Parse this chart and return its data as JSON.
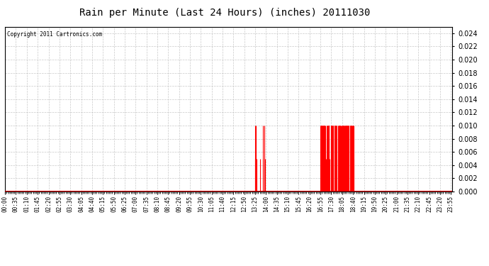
{
  "title": "Rain per Minute (Last 24 Hours) (inches) 20111030",
  "copyright_text": "Copyright 2011 Cartronics.com",
  "bar_color": "#ff0000",
  "background_color": "#ffffff",
  "plot_bg_color": "#ffffff",
  "grid_color": "#bbbbbb",
  "baseline_color": "#ff0000",
  "ylim": [
    0.0,
    0.025
  ],
  "yticks": [
    0.0,
    0.002,
    0.004,
    0.006,
    0.008,
    0.01,
    0.012,
    0.014,
    0.016,
    0.018,
    0.02,
    0.022,
    0.024
  ],
  "total_minutes": 1440,
  "xtick_step": 35,
  "rain_events": [
    {
      "minute": 805,
      "value": 0.005
    },
    {
      "minute": 806,
      "value": 0.01
    },
    {
      "minute": 807,
      "value": 0.005
    },
    {
      "minute": 808,
      "value": 0.01
    },
    {
      "minute": 809,
      "value": 0.005
    },
    {
      "minute": 820,
      "value": 0.005
    },
    {
      "minute": 830,
      "value": 0.01
    },
    {
      "minute": 831,
      "value": 0.005
    },
    {
      "minute": 835,
      "value": 0.01
    },
    {
      "minute": 836,
      "value": 0.005
    },
    {
      "minute": 1015,
      "value": 0.01
    },
    {
      "minute": 1016,
      "value": 0.01
    },
    {
      "minute": 1017,
      "value": 0.01
    },
    {
      "minute": 1018,
      "value": 0.01
    },
    {
      "minute": 1019,
      "value": 0.01
    },
    {
      "minute": 1020,
      "value": 0.01
    },
    {
      "minute": 1021,
      "value": 0.01
    },
    {
      "minute": 1022,
      "value": 0.01
    },
    {
      "minute": 1023,
      "value": 0.01
    },
    {
      "minute": 1024,
      "value": 0.01
    },
    {
      "minute": 1025,
      "value": 0.01
    },
    {
      "minute": 1026,
      "value": 0.01
    },
    {
      "minute": 1027,
      "value": 0.01
    },
    {
      "minute": 1028,
      "value": 0.01
    },
    {
      "minute": 1029,
      "value": 0.01
    },
    {
      "minute": 1030,
      "value": 0.01
    },
    {
      "minute": 1031,
      "value": 0.005
    },
    {
      "minute": 1032,
      "value": 0.005
    },
    {
      "minute": 1036,
      "value": 0.01
    },
    {
      "minute": 1037,
      "value": 0.01
    },
    {
      "minute": 1038,
      "value": 0.01
    },
    {
      "minute": 1039,
      "value": 0.01
    },
    {
      "minute": 1040,
      "value": 0.01
    },
    {
      "minute": 1041,
      "value": 0.01
    },
    {
      "minute": 1042,
      "value": 0.01
    },
    {
      "minute": 1043,
      "value": 0.01
    },
    {
      "minute": 1044,
      "value": 0.005
    },
    {
      "minute": 1048,
      "value": 0.01
    },
    {
      "minute": 1049,
      "value": 0.01
    },
    {
      "minute": 1050,
      "value": 0.01
    },
    {
      "minute": 1051,
      "value": 0.01
    },
    {
      "minute": 1052,
      "value": 0.01
    },
    {
      "minute": 1053,
      "value": 0.01
    },
    {
      "minute": 1054,
      "value": 0.01
    },
    {
      "minute": 1055,
      "value": 0.01
    },
    {
      "minute": 1056,
      "value": 0.01
    },
    {
      "minute": 1060,
      "value": 0.01
    },
    {
      "minute": 1061,
      "value": 0.01
    },
    {
      "minute": 1062,
      "value": 0.01
    },
    {
      "minute": 1063,
      "value": 0.01
    },
    {
      "minute": 1064,
      "value": 0.01
    },
    {
      "minute": 1065,
      "value": 0.01
    },
    {
      "minute": 1066,
      "value": 0.01
    },
    {
      "minute": 1067,
      "value": 0.01
    },
    {
      "minute": 1068,
      "value": 0.005
    },
    {
      "minute": 1072,
      "value": 0.01
    },
    {
      "minute": 1073,
      "value": 0.01
    },
    {
      "minute": 1074,
      "value": 0.01
    },
    {
      "minute": 1075,
      "value": 0.01
    },
    {
      "minute": 1076,
      "value": 0.01
    },
    {
      "minute": 1077,
      "value": 0.01
    },
    {
      "minute": 1078,
      "value": 0.01
    },
    {
      "minute": 1079,
      "value": 0.01
    },
    {
      "minute": 1080,
      "value": 0.01
    },
    {
      "minute": 1084,
      "value": 0.01
    },
    {
      "minute": 1085,
      "value": 0.01
    },
    {
      "minute": 1086,
      "value": 0.01
    },
    {
      "minute": 1087,
      "value": 0.01
    },
    {
      "minute": 1088,
      "value": 0.01
    },
    {
      "minute": 1089,
      "value": 0.01
    },
    {
      "minute": 1090,
      "value": 0.01
    },
    {
      "minute": 1091,
      "value": 0.01
    },
    {
      "minute": 1092,
      "value": 0.005
    },
    {
      "minute": 1093,
      "value": 0.01
    },
    {
      "minute": 1094,
      "value": 0.01
    },
    {
      "minute": 1095,
      "value": 0.01
    },
    {
      "minute": 1096,
      "value": 0.01
    },
    {
      "minute": 1097,
      "value": 0.01
    },
    {
      "minute": 1098,
      "value": 0.01
    },
    {
      "minute": 1099,
      "value": 0.01
    },
    {
      "minute": 1100,
      "value": 0.01
    },
    {
      "minute": 1101,
      "value": 0.01
    },
    {
      "minute": 1102,
      "value": 0.01
    },
    {
      "minute": 1103,
      "value": 0.01
    },
    {
      "minute": 1104,
      "value": 0.01
    },
    {
      "minute": 1105,
      "value": 0.01
    },
    {
      "minute": 1106,
      "value": 0.01
    },
    {
      "minute": 1110,
      "value": 0.01
    },
    {
      "minute": 1111,
      "value": 0.01
    },
    {
      "minute": 1112,
      "value": 0.01
    },
    {
      "minute": 1113,
      "value": 0.01
    },
    {
      "minute": 1114,
      "value": 0.01
    },
    {
      "minute": 1115,
      "value": 0.01
    },
    {
      "minute": 1116,
      "value": 0.01
    },
    {
      "minute": 1117,
      "value": 0.005
    },
    {
      "minute": 1118,
      "value": 0.01
    },
    {
      "minute": 1119,
      "value": 0.01
    },
    {
      "minute": 1120,
      "value": 0.01
    },
    {
      "minute": 1121,
      "value": 0.01
    },
    {
      "minute": 1122,
      "value": 0.005
    }
  ]
}
